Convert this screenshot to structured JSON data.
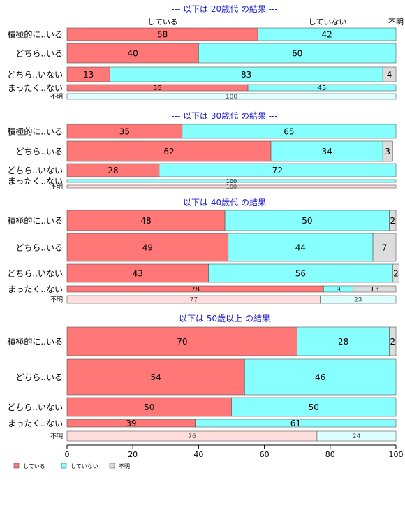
{
  "chart_data": {
    "type": "bar",
    "orientation": "horizontal",
    "stacked": true,
    "xlim": [
      0,
      100
    ],
    "x_ticks": [
      "0",
      "20",
      "40",
      "60",
      "80",
      "100"
    ],
    "series_names": [
      "している",
      "していない",
      "不明"
    ],
    "legend": {
      "position": "bottom-left",
      "items": [
        "している",
        "していない",
        "不明"
      ]
    },
    "top_labels": [
      "している",
      "していない",
      "不明"
    ],
    "colors": {
      "strong": [
        "#ff7777",
        "#88ffff",
        "#dddddd"
      ],
      "light": [
        "#ffdddd",
        "#ddffff",
        "#eeeeee"
      ],
      "title": "#2222cc"
    },
    "panels": [
      {
        "title": "--- 以下は 20歳代 の結果 ---",
        "bars": [
          {
            "label": "積極的に..いる",
            "values": [
              58,
              42,
              0
            ],
            "labels": [
              "58",
              "42",
              ""
            ]
          },
          {
            "label": "どちら..いる",
            "values": [
              40,
              60,
              0
            ],
            "labels": [
              "40",
              "60",
              ""
            ]
          },
          {
            "label": "どちら..いない",
            "values": [
              13,
              83,
              4
            ],
            "labels": [
              "13",
              "83",
              "4"
            ]
          },
          {
            "label": "まったく..ない",
            "values": [
              55,
              45,
              0
            ],
            "labels": [
              "55",
              "45",
              ""
            ]
          },
          {
            "label": "不明",
            "values": [
              0,
              100,
              0
            ],
            "labels": [
              "",
              "100",
              ""
            ],
            "light": true
          }
        ]
      },
      {
        "title": "--- 以下は 30歳代 の結果 ---",
        "bars": [
          {
            "label": "積極的に..いる",
            "values": [
              35,
              65,
              0
            ],
            "labels": [
              "35",
              "65",
              ""
            ]
          },
          {
            "label": "どちら..いる",
            "values": [
              62,
              34,
              3
            ],
            "labels": [
              "62",
              "34",
              "3"
            ]
          },
          {
            "label": "どちら..いない",
            "values": [
              28,
              72,
              0
            ],
            "labels": [
              "28",
              "72",
              ""
            ]
          },
          {
            "label": "まったく..ない",
            "values": [
              0,
              100,
              0
            ],
            "labels": [
              "",
              "100",
              ""
            ]
          },
          {
            "label": "不明",
            "values": [
              100,
              0,
              0
            ],
            "labels": [
              "100",
              "",
              ""
            ],
            "light": true
          }
        ]
      },
      {
        "title": "--- 以下は 40歳代 の結果 ---",
        "bars": [
          {
            "label": "積極的に..いる",
            "values": [
              48,
              50,
              2
            ],
            "labels": [
              "48",
              "50",
              "2"
            ]
          },
          {
            "label": "どちら..いる",
            "values": [
              49,
              44,
              7
            ],
            "labels": [
              "49",
              "44",
              "7"
            ]
          },
          {
            "label": "どちら..いない",
            "values": [
              43,
              56,
              2
            ],
            "labels": [
              "43",
              "56",
              "2"
            ]
          },
          {
            "label": "まったく..ない",
            "values": [
              78,
              9,
              13
            ],
            "labels": [
              "78",
              "9",
              "13"
            ]
          },
          {
            "label": "不明",
            "values": [
              77,
              23,
              0
            ],
            "labels": [
              "77",
              "23",
              ""
            ],
            "light": true
          }
        ]
      },
      {
        "title": "--- 以下は 50歳以上 の結果 ---",
        "bars": [
          {
            "label": "積極的に..いる",
            "values": [
              70,
              28,
              2
            ],
            "labels": [
              "70",
              "28",
              "2"
            ]
          },
          {
            "label": "どちら..いる",
            "values": [
              54,
              46,
              0
            ],
            "labels": [
              "54",
              "46",
              ""
            ]
          },
          {
            "label": "どちら..いない",
            "values": [
              50,
              50,
              0
            ],
            "labels": [
              "50",
              "50",
              ""
            ]
          },
          {
            "label": "まったく..ない",
            "values": [
              39,
              61,
              0
            ],
            "labels": [
              "39",
              "61",
              ""
            ]
          },
          {
            "label": "不明",
            "values": [
              76,
              24,
              0
            ],
            "labels": [
              "76",
              "24",
              ""
            ],
            "light": true
          }
        ]
      }
    ]
  }
}
